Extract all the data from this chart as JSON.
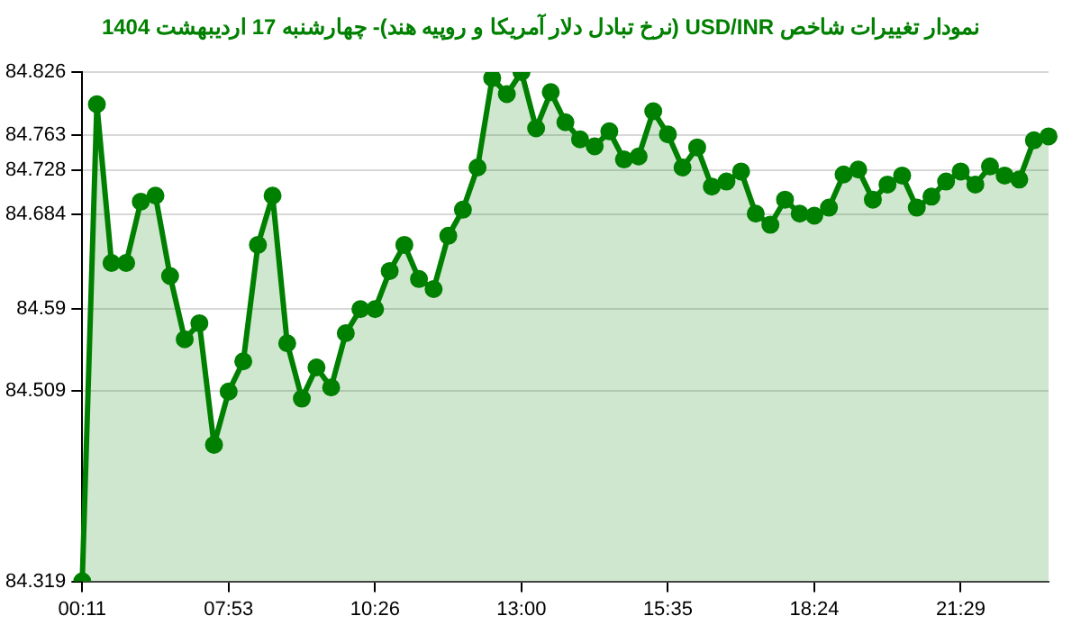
{
  "chart_data": {
    "type": "area",
    "title": "نمودار تغییرات شاخص USD/INR (نرخ تبادل دلار آمریکا و روپیه هند)- چهارشنبه  17 اردیبهشت 1404",
    "categories": [
      "00:11",
      null,
      null,
      null,
      null,
      null,
      null,
      null,
      null,
      null,
      "07:53",
      null,
      null,
      null,
      null,
      null,
      null,
      null,
      null,
      null,
      "10:26",
      null,
      null,
      null,
      null,
      null,
      null,
      null,
      null,
      null,
      "13:00",
      null,
      null,
      null,
      null,
      null,
      null,
      null,
      null,
      null,
      "15:35",
      null,
      null,
      null,
      null,
      null,
      null,
      null,
      null,
      null,
      "18:24",
      null,
      null,
      null,
      null,
      null,
      null,
      null,
      null,
      null,
      "21:29",
      null,
      null,
      null,
      null,
      null,
      null
    ],
    "series": [
      {
        "color": "#008000",
        "values": [
          84.319,
          84.794,
          84.636,
          84.636,
          84.697,
          84.703,
          84.623,
          84.56,
          84.576,
          84.455,
          84.508,
          84.538,
          84.654,
          84.703,
          84.556,
          84.501,
          84.532,
          84.512,
          84.566,
          84.59,
          84.59,
          84.628,
          84.654,
          84.62,
          84.61,
          84.663,
          84.689,
          84.731,
          84.82,
          84.804,
          84.826,
          84.77,
          84.806,
          84.776,
          84.759,
          84.752,
          84.767,
          84.739,
          84.742,
          84.787,
          84.764,
          84.731,
          84.751,
          84.712,
          84.717,
          84.727,
          84.685,
          84.674,
          84.699,
          84.685,
          84.683,
          84.691,
          84.724,
          84.729,
          84.699,
          84.714,
          84.723,
          84.691,
          84.702,
          84.717,
          84.727,
          84.714,
          84.732,
          84.723,
          84.719,
          84.758,
          84.762
        ]
      }
    ],
    "ylim": [
      84.319,
      84.826
    ],
    "yticks": [
      84.319,
      84.509,
      84.59,
      84.684,
      84.728,
      84.763,
      84.826
    ],
    "grid": "y",
    "legend": false,
    "marker": "circle",
    "line_style": "solid"
  }
}
